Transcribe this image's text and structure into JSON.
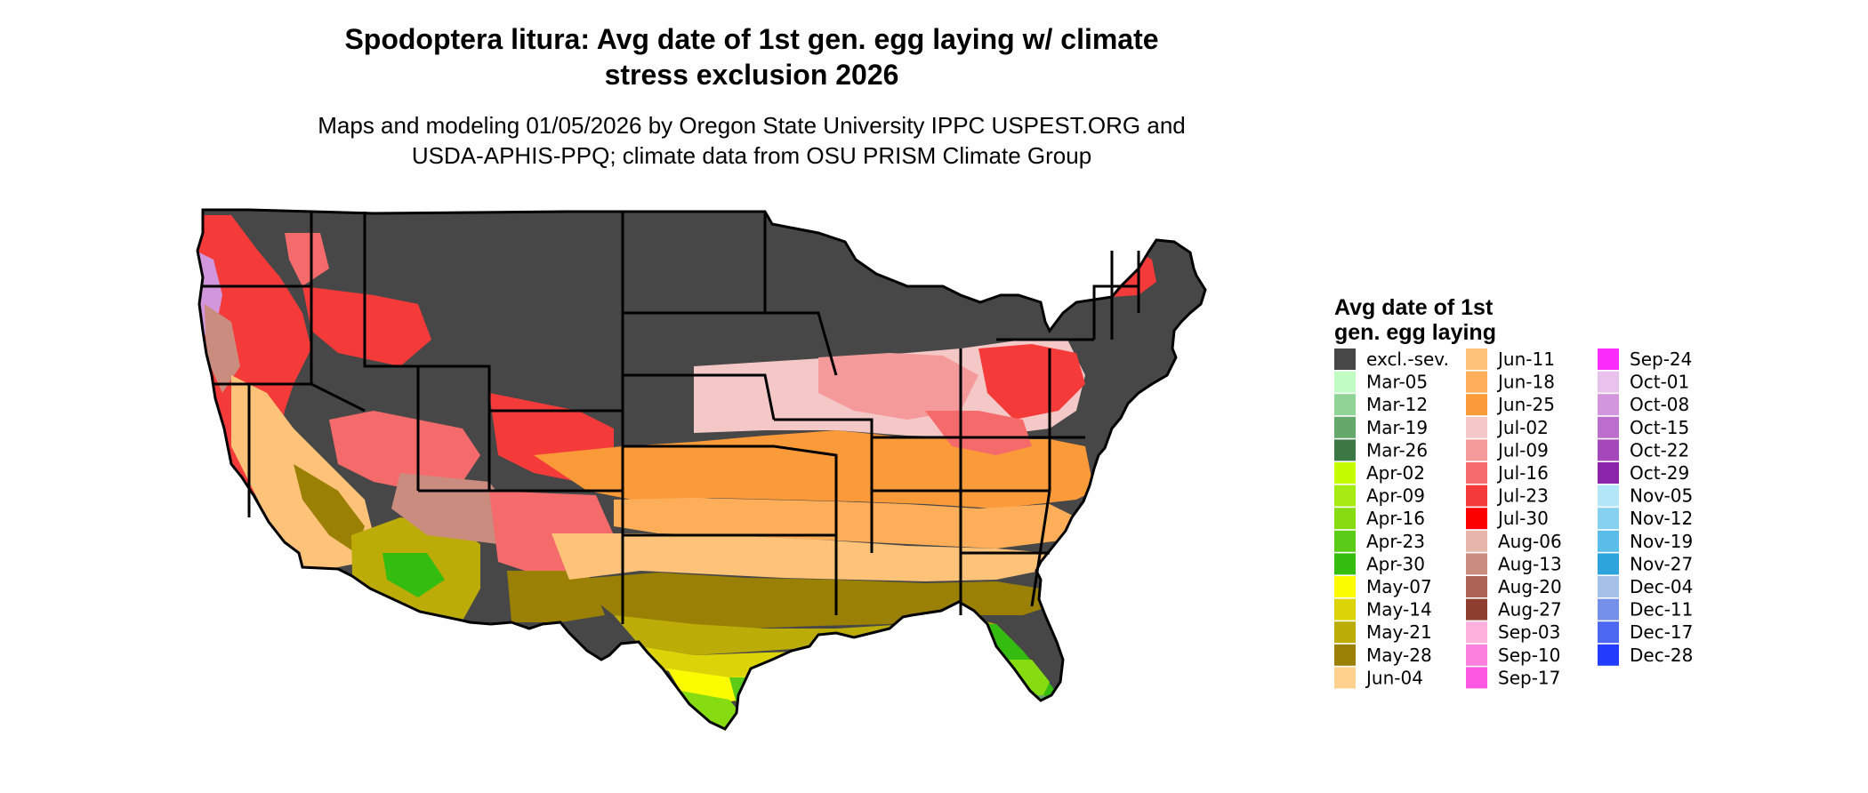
{
  "figure": {
    "title_line1": "Spodoptera litura: Avg date of 1st gen. egg laying w/ climate",
    "title_line2": "stress exclusion 2026",
    "subtitle_line1": "Maps and modeling 01/05/2026 by Oregon State University IPPC USPEST.ORG and",
    "subtitle_line2": "USDA-APHIS-PPQ; climate data from OSU PRISM Climate Group"
  },
  "legend": {
    "title_line1": "Avg date of 1st",
    "title_line2": "gen. egg laying",
    "items": [
      {
        "label": "excl.-sev.",
        "color": "#474747"
      },
      {
        "label": "Mar-05",
        "color": "#c2fcc5"
      },
      {
        "label": "Mar-12",
        "color": "#90d498"
      },
      {
        "label": "Mar-19",
        "color": "#64a86a"
      },
      {
        "label": "Mar-26",
        "color": "#3c7844"
      },
      {
        "label": "Apr-02",
        "color": "#c6fc00"
      },
      {
        "label": "Apr-09",
        "color": "#a6ec14"
      },
      {
        "label": "Apr-16",
        "color": "#86dc10"
      },
      {
        "label": "Apr-23",
        "color": "#5acc18"
      },
      {
        "label": "Apr-30",
        "color": "#34bc10"
      },
      {
        "label": "May-07",
        "color": "#fcfc00"
      },
      {
        "label": "May-14",
        "color": "#dcd408"
      },
      {
        "label": "May-21",
        "color": "#bcac08"
      },
      {
        "label": "May-28",
        "color": "#9a8004"
      },
      {
        "label": "Jun-04",
        "color": "#fed28c"
      },
      {
        "label": "Jun-11",
        "color": "#fec278"
      },
      {
        "label": "Jun-18",
        "color": "#feae58"
      },
      {
        "label": "Jun-25",
        "color": "#fb9a38"
      },
      {
        "label": "Jul-02",
        "color": "#f5c8c8"
      },
      {
        "label": "Jul-09",
        "color": "#f59a9a"
      },
      {
        "label": "Jul-16",
        "color": "#f56a6a"
      },
      {
        "label": "Jul-23",
        "color": "#f53a3a"
      },
      {
        "label": "Jul-30",
        "color": "#fc0000"
      },
      {
        "label": "Aug-06",
        "color": "#e6b6aa"
      },
      {
        "label": "Aug-13",
        "color": "#ca8c7e"
      },
      {
        "label": "Aug-20",
        "color": "#ae6454"
      },
      {
        "label": "Aug-27",
        "color": "#8e3e2e"
      },
      {
        "label": "Sep-03",
        "color": "#fcb2dc"
      },
      {
        "label": "Sep-10",
        "color": "#fc80de"
      },
      {
        "label": "Sep-17",
        "color": "#fc58e2"
      },
      {
        "label": "Sep-24",
        "color": "#fc2cfc"
      },
      {
        "label": "Oct-01",
        "color": "#e8c2ec"
      },
      {
        "label": "Oct-08",
        "color": "#d296dc"
      },
      {
        "label": "Oct-15",
        "color": "#bc6ecc"
      },
      {
        "label": "Oct-22",
        "color": "#a448bc"
      },
      {
        "label": "Oct-29",
        "color": "#8c24aa"
      },
      {
        "label": "Nov-05",
        "color": "#b2e6f8"
      },
      {
        "label": "Nov-12",
        "color": "#86d0f0"
      },
      {
        "label": "Nov-19",
        "color": "#5abce8"
      },
      {
        "label": "Nov-27",
        "color": "#2ea4dc"
      },
      {
        "label": "Dec-04",
        "color": "#a4c0e6"
      },
      {
        "label": "Dec-11",
        "color": "#7490e8"
      },
      {
        "label": "Dec-17",
        "color": "#4c68f0"
      },
      {
        "label": "Dec-28",
        "color": "#243cfc"
      }
    ]
  },
  "map_colors": {
    "border": "#000000",
    "excluded": "#474747"
  }
}
